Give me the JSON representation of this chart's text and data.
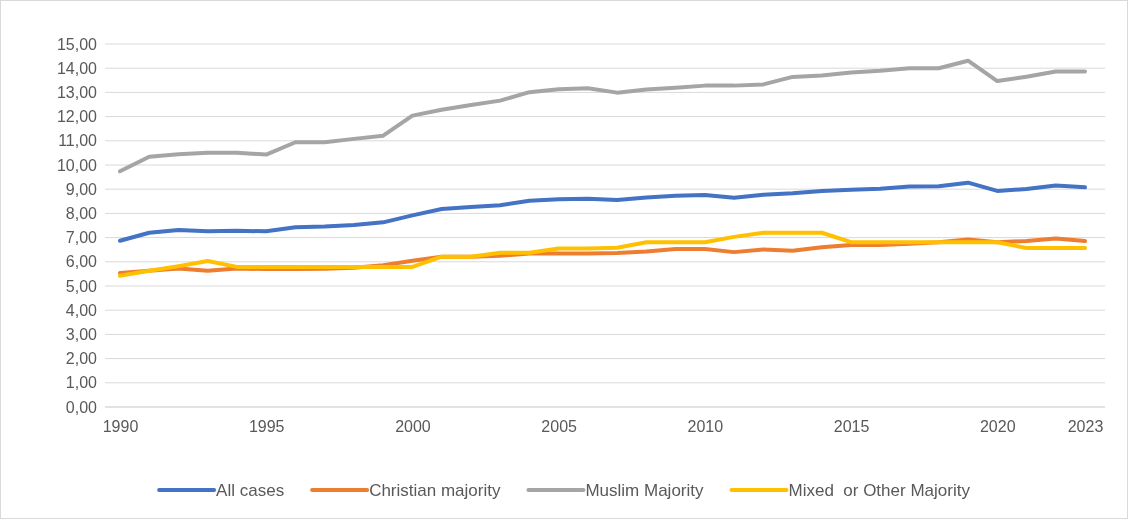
{
  "chart_data": {
    "type": "line",
    "categories": [
      "1990",
      null,
      null,
      null,
      null,
      "1995",
      null,
      null,
      null,
      null,
      "2000",
      null,
      null,
      null,
      null,
      "2005",
      null,
      null,
      null,
      null,
      "2010",
      null,
      null,
      null,
      null,
      "2015",
      null,
      null,
      null,
      null,
      "2020",
      null,
      null,
      "2023"
    ],
    "series": [
      {
        "name": "All cases",
        "color": "#4472c4",
        "values": [
          6.87,
          7.2,
          7.31,
          7.26,
          7.28,
          7.26,
          7.43,
          7.46,
          7.52,
          7.63,
          7.92,
          8.18,
          8.26,
          8.34,
          8.52,
          8.58,
          8.61,
          8.55,
          8.66,
          8.73,
          8.76,
          8.65,
          8.77,
          8.83,
          8.93,
          8.98,
          9.02,
          9.11,
          9.12,
          9.27,
          8.93,
          9.01,
          9.15,
          9.08
        ]
      },
      {
        "name": "Christian majority",
        "color": "#ed7d31",
        "values": [
          5.54,
          5.63,
          5.72,
          5.63,
          5.72,
          5.7,
          5.7,
          5.71,
          5.75,
          5.86,
          6.04,
          6.21,
          6.21,
          6.25,
          6.34,
          6.34,
          6.34,
          6.36,
          6.43,
          6.53,
          6.53,
          6.4,
          6.51,
          6.46,
          6.6,
          6.69,
          6.69,
          6.75,
          6.81,
          6.92,
          6.81,
          6.86,
          6.96,
          6.86
        ]
      },
      {
        "name": "Muslim Majority",
        "color": "#a5a5a5",
        "values": [
          9.74,
          10.34,
          10.44,
          10.51,
          10.51,
          10.43,
          10.94,
          10.94,
          11.08,
          11.21,
          12.04,
          12.28,
          12.48,
          12.66,
          13.01,
          13.13,
          13.17,
          12.99,
          13.12,
          13.19,
          13.28,
          13.28,
          13.33,
          13.64,
          13.7,
          13.82,
          13.89,
          14.0,
          14.0,
          14.31,
          13.47,
          13.65,
          13.86,
          13.86
        ]
      },
      {
        "name": "Mixed  or Other Majority",
        "color": "#ffc000",
        "values": [
          5.42,
          5.63,
          5.82,
          6.03,
          5.79,
          5.79,
          5.79,
          5.79,
          5.79,
          5.79,
          5.79,
          6.21,
          6.21,
          6.37,
          6.37,
          6.55,
          6.55,
          6.58,
          6.81,
          6.81,
          6.81,
          7.03,
          7.2,
          7.2,
          7.2,
          6.81,
          6.81,
          6.81,
          6.81,
          6.81,
          6.81,
          6.57,
          6.57,
          6.57
        ]
      }
    ],
    "ylim": [
      0,
      15
    ],
    "yticks": [
      {
        "value": 0,
        "label": "0,00"
      },
      {
        "value": 1,
        "label": "1,00"
      },
      {
        "value": 2,
        "label": "2,00"
      },
      {
        "value": 3,
        "label": "3,00"
      },
      {
        "value": 4,
        "label": "4,00"
      },
      {
        "value": 5,
        "label": "5,00"
      },
      {
        "value": 6,
        "label": "6,00"
      },
      {
        "value": 7,
        "label": "7,00"
      },
      {
        "value": 8,
        "label": "8,00"
      },
      {
        "value": 9,
        "label": "9,00"
      },
      {
        "value": 10,
        "label": "10,00"
      },
      {
        "value": 11,
        "label": "11,00"
      },
      {
        "value": 12,
        "label": "12,00"
      },
      {
        "value": 13,
        "label": "13,00"
      },
      {
        "value": 14,
        "label": "14,00"
      },
      {
        "value": 15,
        "label": "15,00"
      }
    ],
    "grid": "y",
    "legend": "bottom",
    "marker": "none",
    "line_style": "solid"
  }
}
